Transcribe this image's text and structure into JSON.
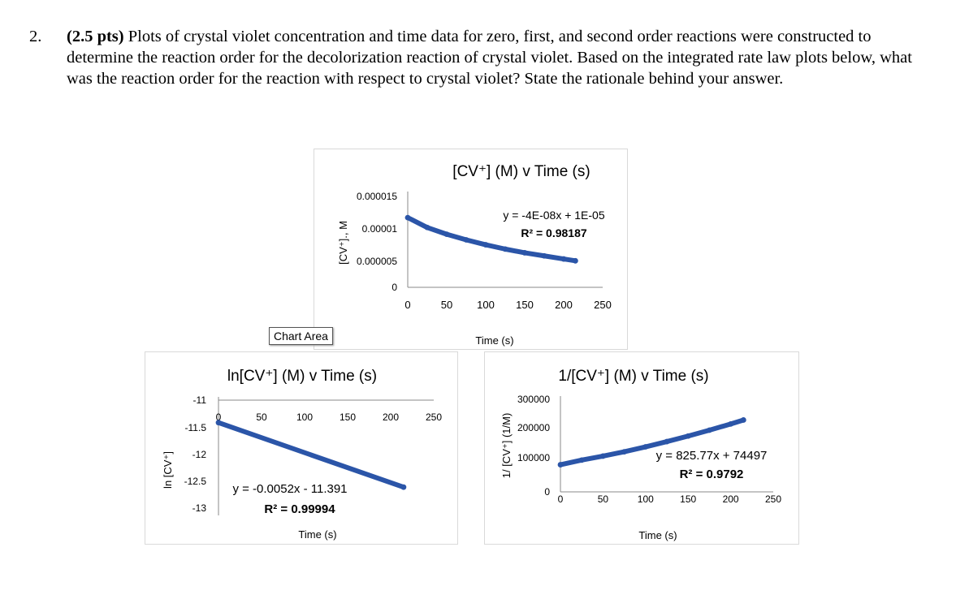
{
  "question": {
    "number": "2.",
    "points": "(2.5 pts)",
    "text": "Plots of crystal violet concentration and time data for zero, first, and second order reactions were constructed to determine the reaction order for the decolorization reaction of crystal violet. Based on the integrated rate law plots below, what was the reaction order for the reaction with respect to crystal violet? State the rationale behind your answer."
  },
  "chart_area_label": "Chart Area",
  "colors": {
    "series": "#2b55a8",
    "axis": "#888888",
    "border": "#d9d9d9"
  },
  "chart_data": [
    {
      "type": "scatter",
      "title": "[CV⁺] (M) v Time (s)",
      "xlabel": "Time (s)",
      "ylabel": "[CV⁺]., M",
      "xticks": [
        "0",
        "50",
        "100",
        "150",
        "200",
        "250"
      ],
      "yticks": [
        "0",
        "0.000005",
        "0.00001",
        "0.000015"
      ],
      "xlim": [
        0,
        250
      ],
      "ylim": [
        0,
        1.5e-05
      ],
      "equation": "y = -4E-08x + 1E-05",
      "r2": "R² = 0.98187",
      "series": [
        {
          "x": [
            0,
            25,
            50,
            75,
            100,
            125,
            150,
            175,
            200,
            215
          ],
          "y": [
            1.13e-05,
            9.7e-06,
            8.6e-06,
            7.7e-06,
            6.9e-06,
            6.2e-06,
            5.6e-06,
            5.1e-06,
            4.6e-06,
            4.3e-06
          ]
        }
      ]
    },
    {
      "type": "scatter",
      "title": "ln[CV⁺] (M) v Time (s)",
      "xlabel": "Time (s)",
      "ylabel": "ln [CV⁺]",
      "xticks": [
        "0",
        "50",
        "100",
        "150",
        "200",
        "250"
      ],
      "yticks": [
        "-11",
        "-11.5",
        "-12",
        "-12.5",
        "-13"
      ],
      "xlim": [
        0,
        250
      ],
      "ylim": [
        -13,
        -11
      ],
      "equation": "y = -0.0052x - 11.391",
      "r2": "R² = 0.99994",
      "series": [
        {
          "x": [
            0,
            215
          ],
          "y": [
            -11.39,
            -12.51
          ]
        }
      ]
    },
    {
      "type": "scatter",
      "title": "1/[CV⁺] (M) v Time (s)",
      "xlabel": "Time (s)",
      "ylabel": "1/ [CV⁺] (1/M)",
      "xticks": [
        "0",
        "50",
        "100",
        "150",
        "200",
        "250"
      ],
      "yticks": [
        "0",
        "100000",
        "200000",
        "300000"
      ],
      "xlim": [
        0,
        250
      ],
      "ylim": [
        0,
        300000
      ],
      "equation": "y = 825.77x + 74497",
      "r2": "R² = 0.9792",
      "series": [
        {
          "x": [
            0,
            25,
            50,
            75,
            100,
            125,
            150,
            175,
            200,
            215
          ],
          "y": [
            88000,
            103000,
            116000,
            130000,
            146000,
            163000,
            181000,
            200000,
            220000,
            233000
          ]
        }
      ]
    }
  ]
}
